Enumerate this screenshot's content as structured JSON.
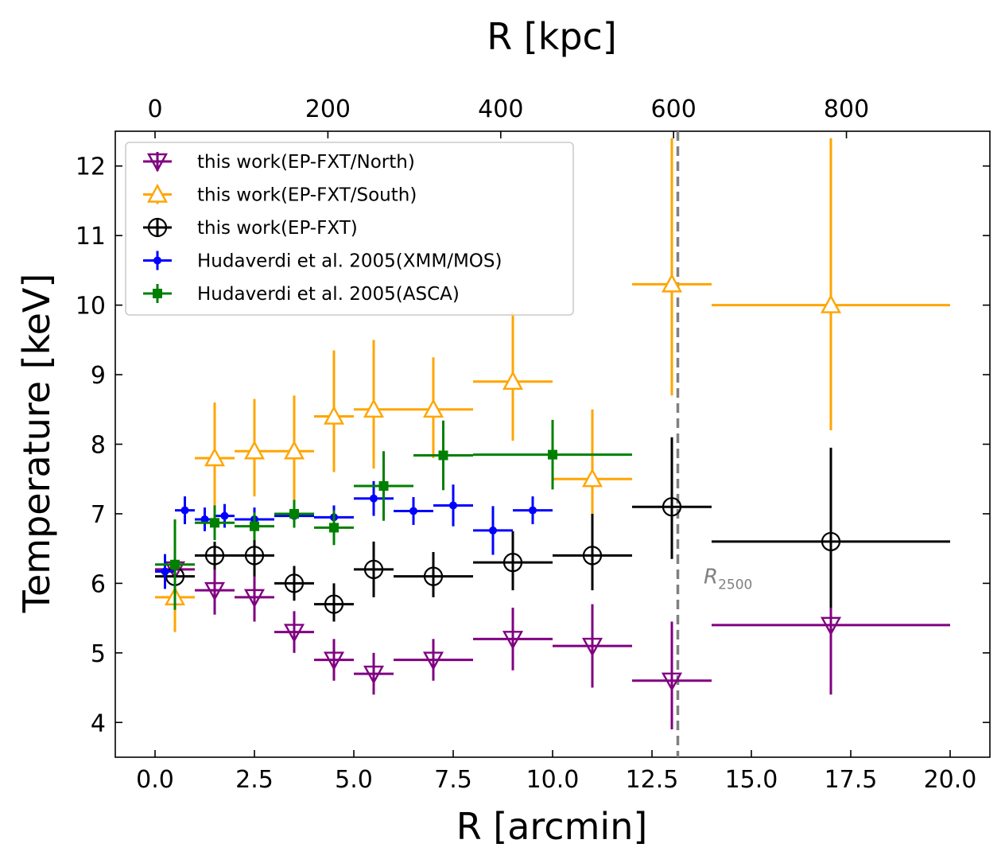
{
  "chart_data": {
    "type": "scatter",
    "xlabel": "R [arcmin]",
    "ylabel": "Temperature [keV]",
    "x2label": "R [kpc]",
    "xlim": [
      -1,
      21
    ],
    "ylim": [
      3.5,
      12.5
    ],
    "xticks": [
      "0.0",
      "2.5",
      "5.0",
      "7.5",
      "10.0",
      "12.5",
      "15.0",
      "17.5",
      "20.0"
    ],
    "x2ticks": [
      "0",
      "200",
      "400",
      "600",
      "800"
    ],
    "x2_per_arcmin": 46.0,
    "yticks": [
      "4",
      "5",
      "6",
      "7",
      "8",
      "9",
      "10",
      "11",
      "12"
    ],
    "grid": false,
    "legend_position": "top-left",
    "vline": {
      "x": 13.15,
      "label": "R",
      "label_sub": "2500",
      "color": "#808080",
      "style": "dashed",
      "label_x": 13.8,
      "label_y": 6.0
    },
    "series": [
      {
        "name": "this work(EP-FXT/North)",
        "color": "#800080",
        "marker": "triangle-down-open",
        "points": [
          {
            "x": 0.5,
            "xerr": 0.5,
            "y": 6.2,
            "ylo": 0.3,
            "yhi": 0.3
          },
          {
            "x": 1.5,
            "xerr": 0.5,
            "y": 5.9,
            "ylo": 0.35,
            "yhi": 0.35
          },
          {
            "x": 2.5,
            "xerr": 0.5,
            "y": 5.8,
            "ylo": 0.35,
            "yhi": 0.35
          },
          {
            "x": 3.5,
            "xerr": 0.5,
            "y": 5.3,
            "ylo": 0.3,
            "yhi": 0.3
          },
          {
            "x": 4.5,
            "xerr": 0.5,
            "y": 4.9,
            "ylo": 0.3,
            "yhi": 0.3
          },
          {
            "x": 5.5,
            "xerr": 0.5,
            "y": 4.7,
            "ylo": 0.3,
            "yhi": 0.3
          },
          {
            "x": 7.0,
            "xerr": 1.0,
            "y": 4.9,
            "ylo": 0.3,
            "yhi": 0.3
          },
          {
            "x": 9.0,
            "xerr": 1.0,
            "y": 5.2,
            "ylo": 0.45,
            "yhi": 0.45
          },
          {
            "x": 11.0,
            "xerr": 1.0,
            "y": 5.1,
            "ylo": 0.6,
            "yhi": 0.6
          },
          {
            "x": 13.0,
            "xerr": 1.0,
            "y": 4.6,
            "ylo": 0.7,
            "yhi": 0.85
          },
          {
            "x": 17.0,
            "xerr": 3.0,
            "y": 5.4,
            "ylo": 1.0,
            "yhi": 0.3
          }
        ]
      },
      {
        "name": "this work(EP-FXT/South)",
        "color": "#FFA500",
        "marker": "triangle-up-open",
        "points": [
          {
            "x": 0.5,
            "xerr": 0.5,
            "y": 5.8,
            "ylo": 0.5,
            "yhi": 0.5
          },
          {
            "x": 1.5,
            "xerr": 0.5,
            "y": 7.8,
            "ylo": 0.8,
            "yhi": 0.8
          },
          {
            "x": 2.5,
            "xerr": 0.5,
            "y": 7.9,
            "ylo": 0.65,
            "yhi": 0.75
          },
          {
            "x": 3.5,
            "xerr": 0.5,
            "y": 7.9,
            "ylo": 0.7,
            "yhi": 0.8
          },
          {
            "x": 4.5,
            "xerr": 0.5,
            "y": 8.4,
            "ylo": 0.8,
            "yhi": 0.95
          },
          {
            "x": 5.5,
            "xerr": 0.5,
            "y": 8.5,
            "ylo": 0.85,
            "yhi": 1.0
          },
          {
            "x": 7.0,
            "xerr": 1.0,
            "y": 8.5,
            "ylo": 0.7,
            "yhi": 0.75
          },
          {
            "x": 9.0,
            "xerr": 1.0,
            "y": 8.9,
            "ylo": 0.85,
            "yhi": 1.0
          },
          {
            "x": 11.0,
            "xerr": 1.0,
            "y": 7.5,
            "ylo": 0.5,
            "yhi": 1.0
          },
          {
            "x": 13.0,
            "xerr": 1.0,
            "y": 10.3,
            "ylo": 1.6,
            "yhi": 2.1
          },
          {
            "x": 17.0,
            "xerr": 3.0,
            "y": 10.0,
            "ylo": 1.8,
            "yhi": 2.4
          }
        ]
      },
      {
        "name": "this work(EP-FXT)",
        "color": "#000000",
        "marker": "circle-plus-open",
        "points": [
          {
            "x": 0.5,
            "xerr": 0.5,
            "y": 6.1,
            "ylo": 0.2,
            "yhi": 0.2
          },
          {
            "x": 1.5,
            "xerr": 0.5,
            "y": 6.4,
            "ylo": 0.2,
            "yhi": 0.2
          },
          {
            "x": 2.5,
            "xerr": 0.5,
            "y": 6.4,
            "ylo": 0.3,
            "yhi": 0.3
          },
          {
            "x": 3.5,
            "xerr": 0.5,
            "y": 6.0,
            "ylo": 0.25,
            "yhi": 0.25
          },
          {
            "x": 4.5,
            "xerr": 0.5,
            "y": 5.7,
            "ylo": 0.25,
            "yhi": 0.3
          },
          {
            "x": 5.5,
            "xerr": 0.5,
            "y": 6.2,
            "ylo": 0.4,
            "yhi": 0.4
          },
          {
            "x": 7.0,
            "xerr": 1.0,
            "y": 6.1,
            "ylo": 0.3,
            "yhi": 0.35
          },
          {
            "x": 9.0,
            "xerr": 1.0,
            "y": 6.3,
            "ylo": 0.4,
            "yhi": 0.45
          },
          {
            "x": 11.0,
            "xerr": 1.0,
            "y": 6.4,
            "ylo": 0.5,
            "yhi": 0.6
          },
          {
            "x": 13.0,
            "xerr": 1.0,
            "y": 7.1,
            "ylo": 0.75,
            "yhi": 1.0
          },
          {
            "x": 17.0,
            "xerr": 3.0,
            "y": 6.6,
            "ylo": 0.95,
            "yhi": 1.35
          }
        ]
      },
      {
        "name": "Hudaverdi et al. 2005(XMM/MOS)",
        "color": "#0000FF",
        "marker": "dot",
        "points": [
          {
            "x": 0.25,
            "xerr": 0.25,
            "y": 6.17,
            "ylo": 0.25,
            "yhi": 0.25
          },
          {
            "x": 0.75,
            "xerr": 0.25,
            "y": 7.05,
            "ylo": 0.2,
            "yhi": 0.2
          },
          {
            "x": 1.25,
            "xerr": 0.25,
            "y": 6.92,
            "ylo": 0.17,
            "yhi": 0.17
          },
          {
            "x": 1.75,
            "xerr": 0.25,
            "y": 6.97,
            "ylo": 0.17,
            "yhi": 0.17
          },
          {
            "x": 2.5,
            "xerr": 0.5,
            "y": 6.92,
            "ylo": 0.17,
            "yhi": 0.17
          },
          {
            "x": 3.5,
            "xerr": 0.5,
            "y": 6.97,
            "ylo": 0.17,
            "yhi": 0.17
          },
          {
            "x": 4.5,
            "xerr": 0.5,
            "y": 6.95,
            "ylo": 0.17,
            "yhi": 0.17
          },
          {
            "x": 5.5,
            "xerr": 0.5,
            "y": 7.22,
            "ylo": 0.25,
            "yhi": 0.25
          },
          {
            "x": 6.5,
            "xerr": 0.5,
            "y": 7.04,
            "ylo": 0.2,
            "yhi": 0.2
          },
          {
            "x": 7.5,
            "xerr": 0.5,
            "y": 7.12,
            "ylo": 0.3,
            "yhi": 0.3
          },
          {
            "x": 8.5,
            "xerr": 0.5,
            "y": 6.76,
            "ylo": 0.35,
            "yhi": 0.35
          },
          {
            "x": 9.5,
            "xerr": 0.5,
            "y": 7.05,
            "ylo": 0.2,
            "yhi": 0.2
          }
        ]
      },
      {
        "name": "Hudaverdi et al. 2005(ASCA)",
        "color": "#008000",
        "marker": "square",
        "points": [
          {
            "x": 0.5,
            "xerr": 0.5,
            "y": 6.27,
            "ylo": 0.65,
            "yhi": 0.65
          },
          {
            "x": 1.5,
            "xerr": 0.5,
            "y": 6.87,
            "ylo": 0.25,
            "yhi": 0.25
          },
          {
            "x": 2.5,
            "xerr": 0.5,
            "y": 6.82,
            "ylo": 0.2,
            "yhi": 0.2
          },
          {
            "x": 3.5,
            "xerr": 0.5,
            "y": 7.0,
            "ylo": 0.2,
            "yhi": 0.2
          },
          {
            "x": 4.5,
            "xerr": 0.5,
            "y": 6.8,
            "ylo": 0.25,
            "yhi": 0.25
          },
          {
            "x": 5.75,
            "xerr": 0.75,
            "y": 7.4,
            "ylo": 0.5,
            "yhi": 0.5
          },
          {
            "x": 7.25,
            "xerr": 0.75,
            "y": 7.84,
            "ylo": 0.5,
            "yhi": 0.5
          },
          {
            "x": 10.0,
            "xerr": 2.0,
            "y": 7.85,
            "ylo": 0.5,
            "yhi": 0.5
          }
        ]
      }
    ]
  }
}
